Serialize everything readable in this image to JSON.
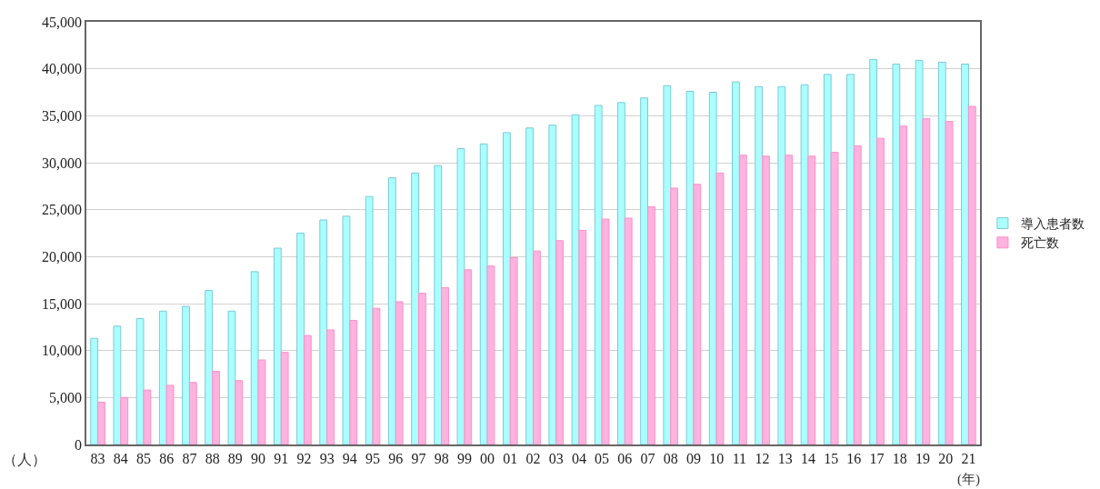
{
  "chart_data": {
    "type": "bar",
    "xlabel": "(年)",
    "ylabel": "（人）",
    "categories": [
      "83",
      "84",
      "85",
      "86",
      "87",
      "88",
      "89",
      "90",
      "91",
      "92",
      "93",
      "94",
      "95",
      "96",
      "97",
      "98",
      "99",
      "00",
      "01",
      "02",
      "03",
      "04",
      "05",
      "06",
      "07",
      "08",
      "09",
      "10",
      "11",
      "12",
      "13",
      "14",
      "15",
      "16",
      "17",
      "18",
      "19",
      "20",
      "21"
    ],
    "series": [
      {
        "name": "導入患者数",
        "color": "#aaffff",
        "values": [
          11300,
          12600,
          13400,
          14200,
          14700,
          16400,
          14200,
          18400,
          20900,
          22500,
          23900,
          24300,
          26400,
          28400,
          28900,
          29700,
          31500,
          32000,
          33200,
          33700,
          34000,
          35100,
          36100,
          36400,
          36900,
          38200,
          37600,
          37500,
          38600,
          38100,
          38100,
          38300,
          39400,
          39400,
          41000,
          40500,
          40900,
          40700,
          40500
        ]
      },
      {
        "name": "死亡数",
        "color": "#ffb3de",
        "values": [
          4500,
          5000,
          5800,
          6300,
          6600,
          7800,
          6800,
          9000,
          9800,
          11600,
          12200,
          13200,
          14500,
          15200,
          16100,
          16700,
          18600,
          19000,
          19900,
          20600,
          21700,
          22800,
          24000,
          24100,
          25300,
          27300,
          27700,
          28900,
          30800,
          30700,
          30800,
          30700,
          31100,
          31800,
          32600,
          33900,
          34700,
          34400,
          36000
        ]
      }
    ],
    "ylim": [
      0,
      45000
    ],
    "yticks": [
      {
        "value": 0,
        "label": "0"
      },
      {
        "value": 5000,
        "label": "5,000"
      },
      {
        "value": 10000,
        "label": "10,000"
      },
      {
        "value": 15000,
        "label": "15,000"
      },
      {
        "value": 20000,
        "label": "20,000"
      },
      {
        "value": 25000,
        "label": "25,000"
      },
      {
        "value": 30000,
        "label": "30,000"
      },
      {
        "value": 35000,
        "label": "35,000"
      },
      {
        "value": 40000,
        "label": "40,000"
      },
      {
        "value": 45000,
        "label": "45,000"
      }
    ],
    "grid": "y",
    "legend": "right"
  }
}
